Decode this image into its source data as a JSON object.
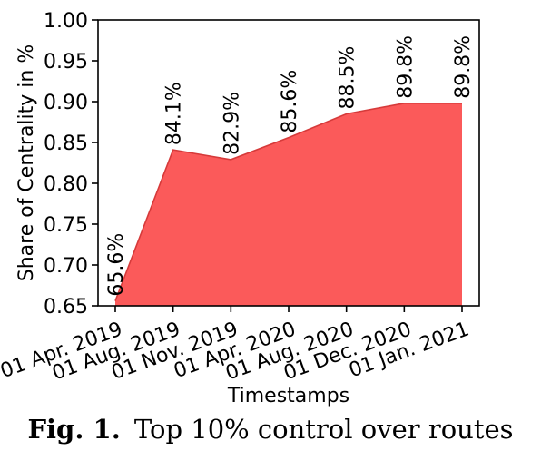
{
  "chart_data": {
    "type": "area",
    "x": [
      "01 Apr. 2019",
      "01 Aug. 2019",
      "01 Nov. 2019",
      "01 Apr. 2020",
      "01 Aug. 2020",
      "01 Dec. 2020",
      "01 Jan. 2021"
    ],
    "values": [
      0.656,
      0.841,
      0.829,
      0.856,
      0.885,
      0.898,
      0.898
    ],
    "data_labels": [
      "65.6%",
      "84.1%",
      "82.9%",
      "85.6%",
      "88.5%",
      "89.8%",
      "89.8%"
    ],
    "xlabel": "Timestamps",
    "ylabel": "Share of Centrality in %",
    "ylim": [
      0.65,
      1.0
    ],
    "yticks": [
      "0.65",
      "0.70",
      "0.75",
      "0.80",
      "0.85",
      "0.90",
      "0.95",
      "1.00"
    ],
    "grid": false,
    "fill_color": "#fb5a5a",
    "edge_color": "#d63a3a"
  },
  "caption": {
    "label": "Fig. 1.",
    "text": "Top 10% control over routes"
  }
}
